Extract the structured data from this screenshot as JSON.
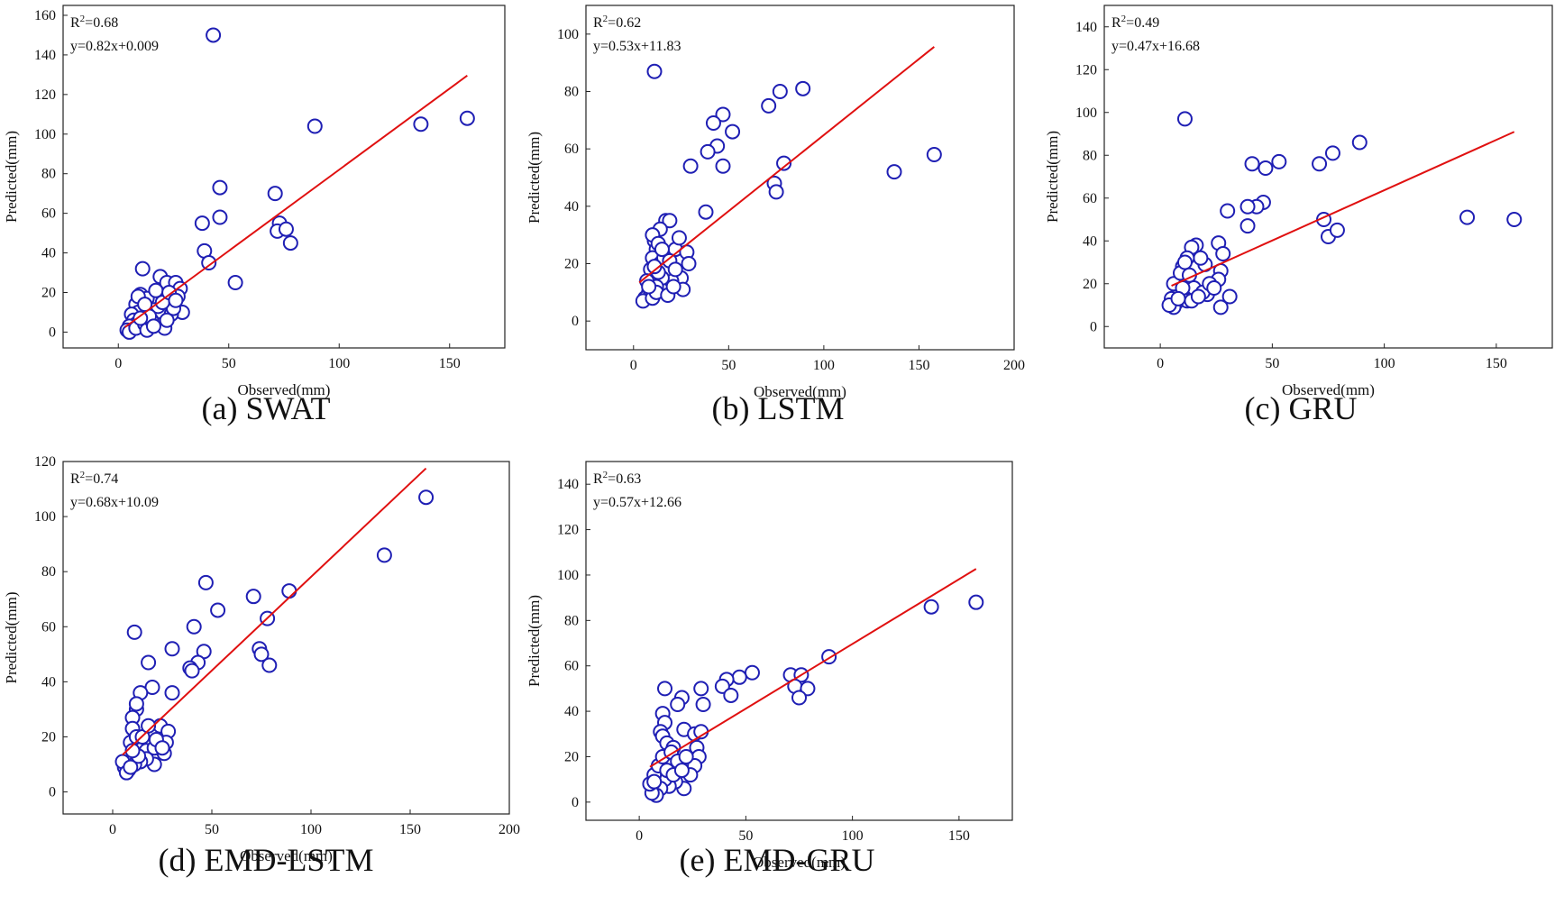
{
  "chart_data": [
    {
      "id": "a",
      "type": "scatter",
      "caption": "(a)  SWAT",
      "xlabel": "Observed(mm)",
      "ylabel": "Predicted(mm)",
      "xlim": [
        -25,
        175
      ],
      "ylim": [
        -8,
        165
      ],
      "xticks": [
        0,
        50,
        100,
        150
      ],
      "yticks": [
        0,
        20,
        40,
        60,
        80,
        100,
        120,
        140,
        160
      ],
      "annotation": {
        "r2_label": "R",
        "r2_sup": "2",
        "r2_value": "=0.68",
        "equation": "y=0.82x+0.009"
      },
      "fit_line": {
        "slope": 0.82,
        "intercept": 0.009,
        "x_range": [
          3,
          158
        ]
      },
      "points": [
        [
          43,
          150
        ],
        [
          89,
          104
        ],
        [
          137,
          105
        ],
        [
          158,
          108
        ],
        [
          71,
          70
        ],
        [
          46,
          73
        ],
        [
          46,
          58
        ],
        [
          73,
          55
        ],
        [
          72,
          51
        ],
        [
          76,
          52
        ],
        [
          78,
          45
        ],
        [
          38,
          55
        ],
        [
          39,
          41
        ],
        [
          41,
          35
        ],
        [
          53,
          25
        ],
        [
          11,
          32
        ],
        [
          19,
          28
        ],
        [
          22,
          25
        ],
        [
          26,
          25
        ],
        [
          28,
          22
        ],
        [
          27,
          18
        ],
        [
          29,
          10
        ],
        [
          24,
          9
        ],
        [
          18,
          13
        ],
        [
          19,
          17
        ],
        [
          16,
          18
        ],
        [
          10,
          19
        ],
        [
          10,
          15
        ],
        [
          11,
          12
        ],
        [
          12,
          10
        ],
        [
          13,
          17
        ],
        [
          8,
          14
        ],
        [
          9,
          10
        ],
        [
          6,
          9
        ],
        [
          7,
          6
        ],
        [
          8,
          4
        ],
        [
          5,
          3
        ],
        [
          4,
          1
        ],
        [
          5,
          0
        ],
        [
          8,
          2
        ],
        [
          12,
          4
        ],
        [
          13,
          1
        ],
        [
          20,
          4
        ],
        [
          21,
          2
        ],
        [
          15,
          6
        ],
        [
          14,
          8
        ],
        [
          16,
          3
        ],
        [
          22,
          6
        ],
        [
          25,
          12
        ],
        [
          20,
          15
        ],
        [
          9,
          18
        ],
        [
          17,
          21
        ],
        [
          23,
          20
        ],
        [
          12,
          14
        ],
        [
          26,
          16
        ],
        [
          10,
          7
        ]
      ]
    },
    {
      "id": "b",
      "type": "scatter",
      "caption": "(b) LSTM",
      "xlabel": "Observed(mm)",
      "ylabel": "Predicted(mm)",
      "xlim": [
        -25,
        200
      ],
      "ylim": [
        -10,
        110
      ],
      "xticks": [
        0,
        50,
        100,
        150,
        200
      ],
      "yticks": [
        0,
        20,
        40,
        60,
        80,
        100
      ],
      "annotation": {
        "r2_label": "R",
        "r2_sup": "2",
        "r2_value": "=0.62",
        "equation": "y=0.53x+11.83"
      },
      "fit_line": {
        "slope": 0.53,
        "intercept": 11.83,
        "x_range": [
          3,
          158
        ]
      },
      "points": [
        [
          11,
          87
        ],
        [
          89,
          81
        ],
        [
          77,
          80
        ],
        [
          71,
          75
        ],
        [
          47,
          72
        ],
        [
          42,
          69
        ],
        [
          52,
          66
        ],
        [
          44,
          61
        ],
        [
          39,
          59
        ],
        [
          30,
          54
        ],
        [
          47,
          54
        ],
        [
          79,
          55
        ],
        [
          74,
          48
        ],
        [
          75,
          45
        ],
        [
          137,
          52
        ],
        [
          158,
          58
        ],
        [
          38,
          38
        ],
        [
          17,
          35
        ],
        [
          19,
          35
        ],
        [
          14,
          32
        ],
        [
          11,
          28
        ],
        [
          10,
          30
        ],
        [
          12,
          25
        ],
        [
          13,
          27
        ],
        [
          10,
          22
        ],
        [
          9,
          18
        ],
        [
          14,
          20
        ],
        [
          16,
          22
        ],
        [
          22,
          25
        ],
        [
          24,
          29
        ],
        [
          28,
          24
        ],
        [
          29,
          20
        ],
        [
          25,
          15
        ],
        [
          26,
          11
        ],
        [
          20,
          14
        ],
        [
          17,
          18
        ],
        [
          15,
          15
        ],
        [
          12,
          12
        ],
        [
          8,
          10
        ],
        [
          6,
          8
        ],
        [
          7,
          14
        ],
        [
          9,
          9
        ],
        [
          5,
          7
        ],
        [
          10,
          8
        ],
        [
          12,
          10
        ],
        [
          18,
          9
        ],
        [
          21,
          12
        ],
        [
          13,
          17
        ],
        [
          11,
          19
        ],
        [
          15,
          25
        ],
        [
          19,
          21
        ],
        [
          22,
          18
        ],
        [
          8,
          12
        ]
      ]
    },
    {
      "id": "c",
      "type": "scatter",
      "caption": "(c) GRU",
      "xlabel": "Observed(mm)",
      "ylabel": "Predicted(mm)",
      "xlim": [
        -25,
        175
      ],
      "ylim": [
        -10,
        150
      ],
      "xticks": [
        0,
        50,
        100,
        150
      ],
      "yticks": [
        0,
        20,
        40,
        60,
        80,
        100,
        120,
        140
      ],
      "annotation": {
        "r2_label": "R",
        "r2_sup": "2",
        "r2_value": "=0.49",
        "equation": "y=0.47x+16.68"
      },
      "fit_line": {
        "slope": 0.47,
        "intercept": 16.68,
        "x_range": [
          5,
          158
        ]
      },
      "points": [
        [
          11,
          97
        ],
        [
          89,
          86
        ],
        [
          77,
          81
        ],
        [
          71,
          76
        ],
        [
          53,
          77
        ],
        [
          47,
          74
        ],
        [
          41,
          76
        ],
        [
          46,
          58
        ],
        [
          43,
          56
        ],
        [
          39,
          56
        ],
        [
          39,
          47
        ],
        [
          30,
          54
        ],
        [
          73,
          50
        ],
        [
          75,
          42
        ],
        [
          79,
          45
        ],
        [
          137,
          51
        ],
        [
          158,
          50
        ],
        [
          26,
          39
        ],
        [
          28,
          34
        ],
        [
          27,
          26
        ],
        [
          26,
          22
        ],
        [
          31,
          14
        ],
        [
          27,
          9
        ],
        [
          21,
          15
        ],
        [
          20,
          29
        ],
        [
          18,
          32
        ],
        [
          16,
          38
        ],
        [
          14,
          37
        ],
        [
          12,
          32
        ],
        [
          10,
          28
        ],
        [
          9,
          22
        ],
        [
          8,
          17
        ],
        [
          10,
          14
        ],
        [
          12,
          12
        ],
        [
          7,
          11
        ],
        [
          6,
          9
        ],
        [
          5,
          13
        ],
        [
          4,
          10
        ],
        [
          6,
          20
        ],
        [
          9,
          25
        ],
        [
          11,
          30
        ],
        [
          13,
          24
        ],
        [
          15,
          18
        ],
        [
          19,
          16
        ],
        [
          22,
          20
        ],
        [
          14,
          12
        ],
        [
          17,
          14
        ],
        [
          10,
          18
        ],
        [
          8,
          13
        ],
        [
          24,
          18
        ]
      ]
    },
    {
      "id": "d",
      "type": "scatter",
      "caption": "(d) EMD-LSTM",
      "xlabel": "Observed(mm)",
      "ylabel": "Predicted(mm)",
      "xlim": [
        -25,
        200
      ],
      "ylim": [
        -8,
        120
      ],
      "xticks": [
        0,
        50,
        100,
        150,
        200
      ],
      "yticks": [
        0,
        20,
        40,
        60,
        80,
        100,
        120
      ],
      "annotation": {
        "r2_label": "R",
        "r2_sup": "2",
        "r2_value": "=0.74",
        "equation": "y=0.68x+10.09"
      },
      "fit_line": {
        "slope": 0.68,
        "intercept": 10.09,
        "x_range": [
          5,
          158
        ]
      },
      "points": [
        [
          158,
          107
        ],
        [
          137,
          86
        ],
        [
          89,
          73
        ],
        [
          71,
          71
        ],
        [
          78,
          63
        ],
        [
          47,
          76
        ],
        [
          53,
          66
        ],
        [
          41,
          60
        ],
        [
          46,
          51
        ],
        [
          43,
          47
        ],
        [
          39,
          45
        ],
        [
          40,
          44
        ],
        [
          74,
          52
        ],
        [
          75,
          50
        ],
        [
          79,
          46
        ],
        [
          11,
          58
        ],
        [
          18,
          47
        ],
        [
          30,
          52
        ],
        [
          20,
          38
        ],
        [
          30,
          36
        ],
        [
          14,
          36
        ],
        [
          12,
          30
        ],
        [
          10,
          27
        ],
        [
          10,
          23
        ],
        [
          9,
          18
        ],
        [
          12,
          20
        ],
        [
          17,
          15
        ],
        [
          21,
          16
        ],
        [
          24,
          24
        ],
        [
          28,
          22
        ],
        [
          27,
          18
        ],
        [
          26,
          14
        ],
        [
          21,
          10
        ],
        [
          17,
          12
        ],
        [
          14,
          11
        ],
        [
          11,
          10
        ],
        [
          8,
          8
        ],
        [
          6,
          9
        ],
        [
          5,
          11
        ],
        [
          7,
          7
        ],
        [
          9,
          9
        ],
        [
          13,
          13
        ],
        [
          15,
          20
        ],
        [
          18,
          24
        ],
        [
          22,
          19
        ],
        [
          25,
          16
        ],
        [
          10,
          15
        ],
        [
          12,
          32
        ]
      ]
    },
    {
      "id": "e",
      "type": "scatter",
      "caption": "(e) EMD-GRU",
      "xlabel": "Observed(mm)",
      "ylabel": "Predicted(mm)",
      "xlim": [
        -25,
        175
      ],
      "ylim": [
        -8,
        150
      ],
      "xticks": [
        0,
        50,
        100,
        150
      ],
      "yticks": [
        0,
        20,
        40,
        60,
        80,
        100,
        120,
        140
      ],
      "annotation": {
        "r2_label": "R",
        "r2_sup": "2",
        "r2_value": "=0.63",
        "equation": "y=0.57x+12.66"
      },
      "fit_line": {
        "slope": 0.57,
        "intercept": 12.66,
        "x_range": [
          5,
          158
        ]
      },
      "points": [
        [
          158,
          88
        ],
        [
          137,
          86
        ],
        [
          89,
          64
        ],
        [
          71,
          56
        ],
        [
          76,
          56
        ],
        [
          73,
          51
        ],
        [
          79,
          50
        ],
        [
          75,
          46
        ],
        [
          53,
          57
        ],
        [
          47,
          55
        ],
        [
          41,
          54
        ],
        [
          39,
          51
        ],
        [
          43,
          47
        ],
        [
          29,
          50
        ],
        [
          30,
          43
        ],
        [
          12,
          50
        ],
        [
          20,
          46
        ],
        [
          18,
          43
        ],
        [
          11,
          39
        ],
        [
          12,
          35
        ],
        [
          10,
          31
        ],
        [
          11,
          29
        ],
        [
          13,
          26
        ],
        [
          16,
          24
        ],
        [
          21,
          32
        ],
        [
          26,
          30
        ],
        [
          29,
          31
        ],
        [
          27,
          24
        ],
        [
          28,
          20
        ],
        [
          26,
          16
        ],
        [
          24,
          12
        ],
        [
          21,
          6
        ],
        [
          17,
          9
        ],
        [
          14,
          7
        ],
        [
          12,
          10
        ],
        [
          10,
          6
        ],
        [
          8,
          3
        ],
        [
          6,
          4
        ],
        [
          5,
          8
        ],
        [
          7,
          12
        ],
        [
          9,
          16
        ],
        [
          11,
          20
        ],
        [
          15,
          22
        ],
        [
          18,
          18
        ],
        [
          22,
          20
        ],
        [
          7,
          9
        ],
        [
          13,
          14
        ],
        [
          16,
          12
        ],
        [
          20,
          14
        ]
      ]
    }
  ]
}
